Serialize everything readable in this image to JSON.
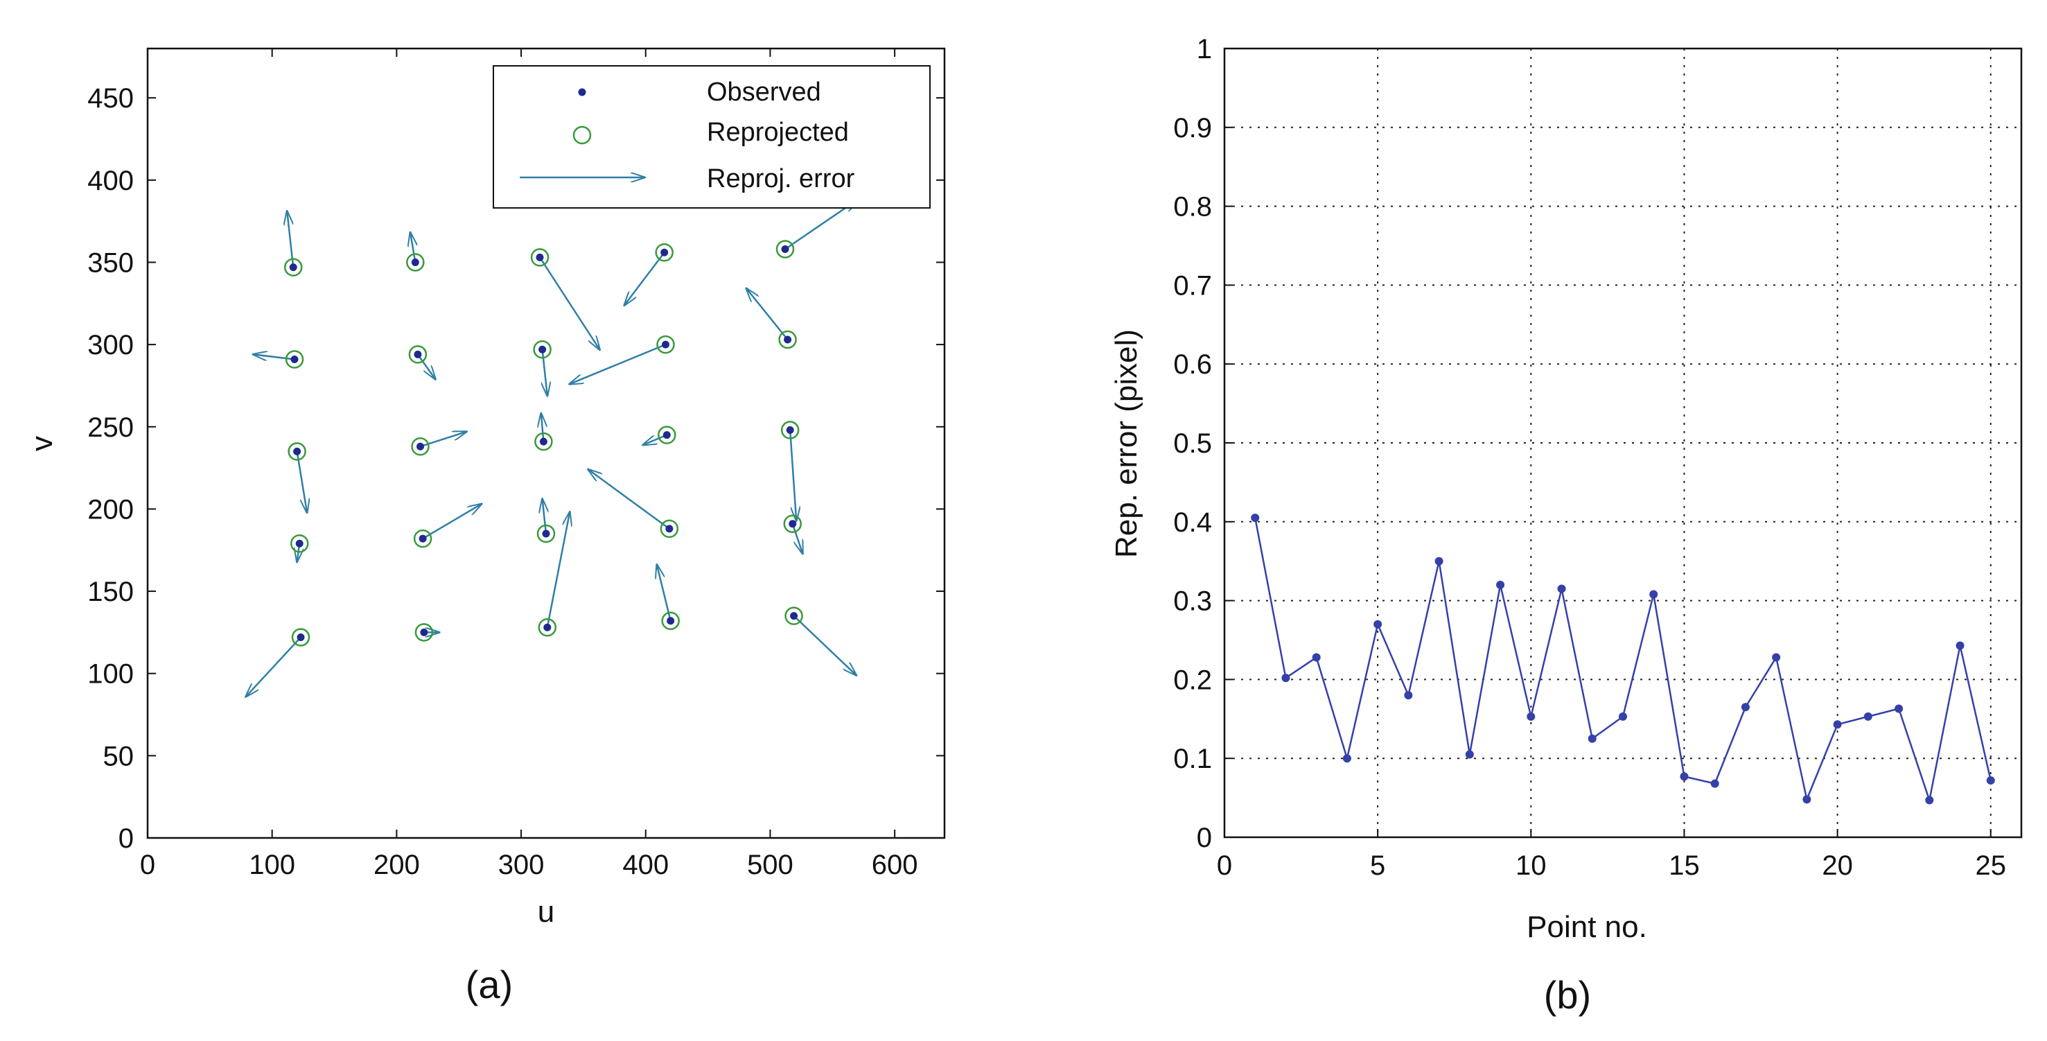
{
  "colors": {
    "observed": "#1f2a8c",
    "reprojected": "#3a9a3a",
    "arrow": "#2f7fa6",
    "line": "#3540a8",
    "grid": "#222222"
  },
  "chart_data": [
    {
      "type": "scatter",
      "caption": "(a)",
      "xlabel": "u",
      "ylabel": "v",
      "xlim": [
        0,
        640
      ],
      "ylim": [
        0,
        480
      ],
      "xticks": [
        0,
        100,
        200,
        300,
        400,
        500,
        600
      ],
      "yticks": [
        0,
        50,
        100,
        150,
        200,
        250,
        300,
        350,
        400,
        450
      ],
      "xtick_labels": [
        "0",
        "100",
        "200",
        "300",
        "400",
        "500",
        "600"
      ],
      "ytick_labels": [
        "0",
        "50",
        "100",
        "150",
        "200",
        "250",
        "300",
        "350",
        "400",
        "450"
      ],
      "legend": {
        "position": "top-right",
        "observed": "Observed",
        "reprojected": "Reprojected",
        "error": "Reproj. error"
      },
      "points": [
        {
          "u": 117,
          "v": 347,
          "eu": -5,
          "ev": 34
        },
        {
          "u": 118,
          "v": 291,
          "eu": -33,
          "ev": 3
        },
        {
          "u": 120,
          "v": 235,
          "eu": 8,
          "ev": -37
        },
        {
          "u": 122,
          "v": 179,
          "eu": -2,
          "ev": -11
        },
        {
          "u": 123,
          "v": 122,
          "eu": -44,
          "ev": -36
        },
        {
          "u": 215,
          "v": 350,
          "eu": -4,
          "ev": 18
        },
        {
          "u": 217,
          "v": 294,
          "eu": 14,
          "ev": -15
        },
        {
          "u": 219,
          "v": 238,
          "eu": 37,
          "ev": 9
        },
        {
          "u": 221,
          "v": 182,
          "eu": 47,
          "ev": 21
        },
        {
          "u": 222,
          "v": 125,
          "eu": 12,
          "ev": 0
        },
        {
          "u": 315,
          "v": 353,
          "eu": 48,
          "ev": -56
        },
        {
          "u": 317,
          "v": 297,
          "eu": 4,
          "ev": -28
        },
        {
          "u": 318,
          "v": 241,
          "eu": -2,
          "ev": 17
        },
        {
          "u": 320,
          "v": 185,
          "eu": -3,
          "ev": 21
        },
        {
          "u": 321,
          "v": 128,
          "eu": 18,
          "ev": 70
        },
        {
          "u": 415,
          "v": 356,
          "eu": -32,
          "ev": -32
        },
        {
          "u": 416,
          "v": 300,
          "eu": -77,
          "ev": -24
        },
        {
          "u": 417,
          "v": 245,
          "eu": -19,
          "ev": -6
        },
        {
          "u": 419,
          "v": 188,
          "eu": -65,
          "ev": 36
        },
        {
          "u": 420,
          "v": 132,
          "eu": -11,
          "ev": 34
        },
        {
          "u": 512,
          "v": 358,
          "eu": 58,
          "ev": 30
        },
        {
          "u": 514,
          "v": 303,
          "eu": -33,
          "ev": 31
        },
        {
          "u": 516,
          "v": 248,
          "eu": 5,
          "ev": -55
        },
        {
          "u": 518,
          "v": 191,
          "eu": 8,
          "ev": -18
        },
        {
          "u": 519,
          "v": 135,
          "eu": 50,
          "ev": -36
        }
      ]
    },
    {
      "type": "line",
      "caption": "(b)",
      "xlabel": "Point no.",
      "ylabel": "Rep. error (pixel)",
      "xlim": [
        0,
        26
      ],
      "ylim": [
        0,
        1
      ],
      "grid": true,
      "xticks": [
        0,
        5,
        10,
        15,
        20,
        25
      ],
      "yticks": [
        0,
        0.1,
        0.2,
        0.3,
        0.4,
        0.5,
        0.6,
        0.7,
        0.8,
        0.9,
        1
      ],
      "xtick_labels": [
        "0",
        "5",
        "10",
        "15",
        "20",
        "25"
      ],
      "ytick_labels": [
        "0",
        "0.1",
        "0.2",
        "0.3",
        "0.4",
        "0.5",
        "0.6",
        "0.7",
        "0.8",
        "0.9",
        "1"
      ],
      "x": [
        1,
        2,
        3,
        4,
        5,
        6,
        7,
        8,
        9,
        10,
        11,
        12,
        13,
        14,
        15,
        16,
        17,
        18,
        19,
        20,
        21,
        22,
        23,
        24,
        25
      ],
      "y": [
        0.405,
        0.202,
        0.228,
        0.1,
        0.27,
        0.18,
        0.35,
        0.105,
        0.32,
        0.153,
        0.315,
        0.125,
        0.153,
        0.308,
        0.077,
        0.068,
        0.165,
        0.228,
        0.048,
        0.143,
        0.153,
        0.163,
        0.047,
        0.243,
        0.072
      ]
    }
  ]
}
